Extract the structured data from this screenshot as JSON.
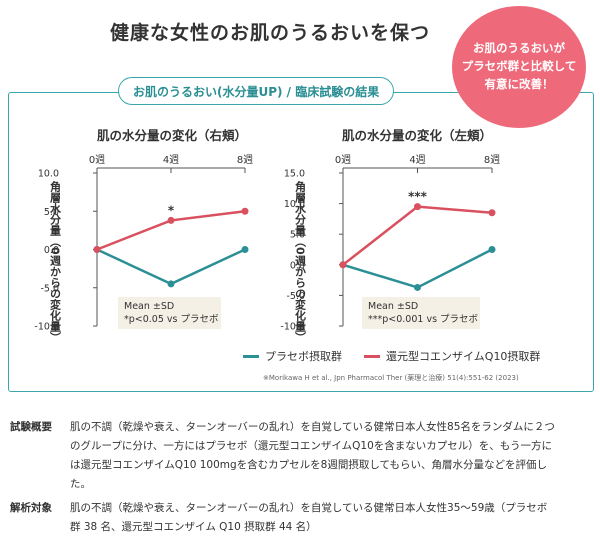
{
  "page": {
    "title": "健康な女性のお肌のうるおいを保つ",
    "badge_lines": [
      "お肌のうるおいが",
      "プラセボ群と比較して",
      "有意に改善！"
    ],
    "panel_title": "お肌のうるおい(水分量UP) / 臨床試験の結果",
    "source": "※Morikawa H et al., Jpn Pharmacol Ther (薬理と治療) 51(4):551-62 (2023)"
  },
  "legend": [
    {
      "label": "プラセボ摂取群",
      "color": "#2b8f96"
    },
    {
      "label": "還元型コエンザイムQ10摂取群",
      "color": "#d9505f"
    }
  ],
  "info": [
    {
      "key": "試験概要",
      "lines": [
        "肌の不調（乾燥や衰え、ターンオーバーの乱れ）を自覚している健常日本人女性85名をランダムに２つ",
        "のグループに分け、一方にはプラセボ（還元型コエンザイムQ10を含まないカプセル）を、もう一方に",
        "は還元型コエンザイムQ10 100mgを含むカプセルを8週間摂取してもらい、角層水分量などを評価し",
        "た。"
      ]
    },
    {
      "key": "解析対象",
      "lines": [
        "肌の不調（乾燥や衰え、ターンオーバーの乱れ）を自覚している健常日本人女性35～59歳（プラセボ",
        "群 38 名、還元型コエンザイム Q10 摂取群 44 名）"
      ]
    }
  ],
  "chart_data": [
    {
      "type": "line",
      "title": "肌の水分量の変化（右頬）",
      "ylabel": "角層水分量（0週からの変化量）",
      "x": [
        "0週",
        "4週",
        "8週"
      ],
      "yticks": [
        "10.0",
        "5.0",
        "0.0",
        "-5.0",
        "-10.0"
      ],
      "ylim": [
        -10,
        10
      ],
      "series": [
        {
          "name": "プラセボ摂取群",
          "color": "#2b8f96",
          "values": [
            0,
            -4.5,
            0
          ]
        },
        {
          "name": "還元型コエンザイムQ10摂取群",
          "color": "#d9505f",
          "values": [
            0,
            3.8,
            5.0
          ]
        }
      ],
      "significance": {
        "index": 1,
        "label": "*"
      },
      "note": [
        "Mean ±SD",
        "*p<0.05 vs プラセボ"
      ]
    },
    {
      "type": "line",
      "title": "肌の水分量の変化（左頬）",
      "ylabel": "角層水分量（0週からの変化量）",
      "x": [
        "0週",
        "4週",
        "8週"
      ],
      "yticks": [
        "15.0",
        "10.0",
        "5.0",
        "0.0",
        "-5.0",
        "-10.0"
      ],
      "ylim": [
        -10,
        15
      ],
      "series": [
        {
          "name": "プラセボ摂取群",
          "color": "#2b8f96",
          "values": [
            0,
            -3.7,
            2.5
          ]
        },
        {
          "name": "還元型コエンザイムQ10摂取群",
          "color": "#d9505f",
          "values": [
            0,
            9.5,
            8.5
          ]
        }
      ],
      "significance": {
        "index": 1,
        "label": "***"
      },
      "note": [
        "Mean ±SD",
        "***p<0.001 vs プラセボ"
      ]
    }
  ]
}
